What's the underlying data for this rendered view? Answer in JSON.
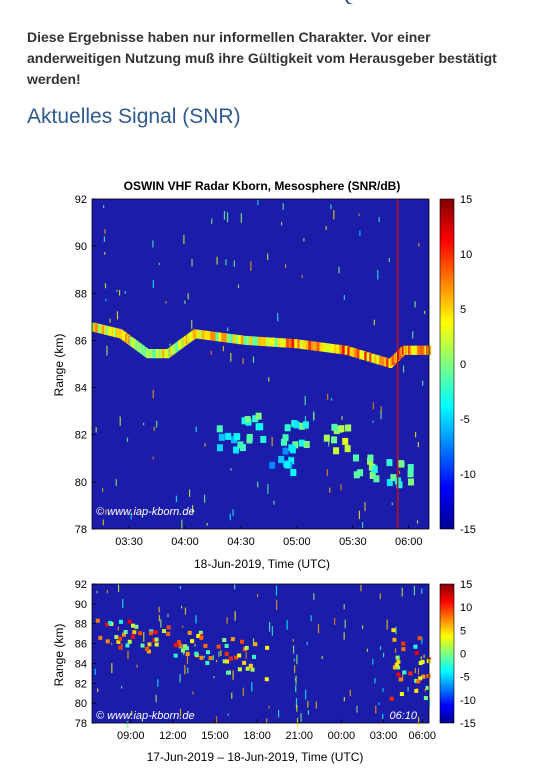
{
  "notice": "Diese Ergebnisse haben nur informellen Charakter. Vor einer anderweitigen Nutzung muß ihre Gültigkeit vom Herausgeber bestätigt werden!",
  "section_title": "Aktuelles Signal (SNR)",
  "chart_data": [
    {
      "type": "heatmap",
      "title": "OSWIN VHF Radar Kborn, Mesosphere (SNR/dB)",
      "xlabel": "18-Jun-2019, Time (UTC)",
      "ylabel": "Range (km)",
      "x_ticks": [
        "03:30",
        "04:00",
        "04:30",
        "05:00",
        "05:30",
        "06:00"
      ],
      "y_ticks": [
        "92",
        "90",
        "88",
        "86",
        "84",
        "82",
        "80",
        "78"
      ],
      "ylim": [
        78,
        92
      ],
      "colorbar_ticks": [
        "15",
        "10",
        "5",
        "0",
        "-5",
        "-10",
        "-15"
      ],
      "colorbar_range": [
        -15,
        15
      ],
      "watermark": "© www.iap-kborn.de"
    },
    {
      "type": "heatmap",
      "xlabel": "17-Jun-2019 – 18-Jun-2019, Time (UTC)",
      "ylabel": "Range (km)",
      "x_ticks": [
        "09:00",
        "12:00",
        "15:00",
        "18:00",
        "21:00",
        "00:00",
        "03:00",
        "06:00"
      ],
      "y_ticks": [
        "92",
        "90",
        "88",
        "86",
        "84",
        "82",
        "80",
        "78"
      ],
      "ylim": [
        78,
        92
      ],
      "colorbar_ticks": [
        "15",
        "10",
        "5",
        "0",
        "-5",
        "-10",
        "-15"
      ],
      "colorbar_range": [
        -15,
        15
      ],
      "watermark": "© www.iap-kborn.de",
      "time_label": "06:10"
    }
  ],
  "colors": {
    "title": "#2f5a8f",
    "background": "#1c1caa"
  }
}
